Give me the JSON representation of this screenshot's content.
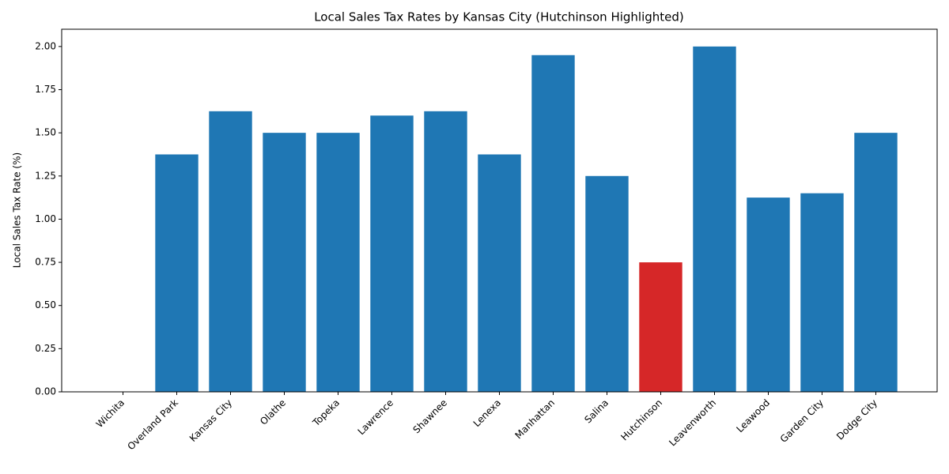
{
  "chart_data": {
    "type": "bar",
    "title": "Local Sales Tax Rates by Kansas City (Hutchinson Highlighted)",
    "y_label": "Local Sales Tax Rate (%)",
    "categories": [
      "Wichita",
      "Overland Park",
      "Kansas City",
      "Olathe",
      "Topeka",
      "Lawrence",
      "Shawnee",
      "Lenexa",
      "Manhattan",
      "Salina",
      "Hutchinson",
      "Leavenworth",
      "Leawood",
      "Garden City",
      "Dodge City"
    ],
    "values": [
      0,
      1.375,
      1.625,
      1.5,
      1.5,
      1.6,
      1.625,
      1.375,
      1.95,
      1.25,
      0.75,
      2.0,
      1.125,
      1.15,
      1.5
    ],
    "colors": [
      "#1f77b4",
      "#1f77b4",
      "#1f77b4",
      "#1f77b4",
      "#1f77b4",
      "#1f77b4",
      "#1f77b4",
      "#1f77b4",
      "#1f77b4",
      "#1f77b4",
      "#d62728",
      "#1f77b4",
      "#1f77b4",
      "#1f77b4",
      "#1f77b4"
    ],
    "ylim": [
      0,
      2.1
    ],
    "yticks": [
      {
        "value": 0,
        "label": "0.00"
      },
      {
        "value": 0.25,
        "label": "0.25"
      },
      {
        "value": 0.5,
        "label": "0.50"
      },
      {
        "value": 0.75,
        "label": "0.75"
      },
      {
        "value": 1,
        "label": "1.00"
      },
      {
        "value": 1.25,
        "label": "1.25"
      },
      {
        "value": 1.5,
        "label": "1.50"
      },
      {
        "value": 1.75,
        "label": "1.75"
      },
      {
        "value": 2,
        "label": "2.00"
      }
    ],
    "grid": false
  }
}
